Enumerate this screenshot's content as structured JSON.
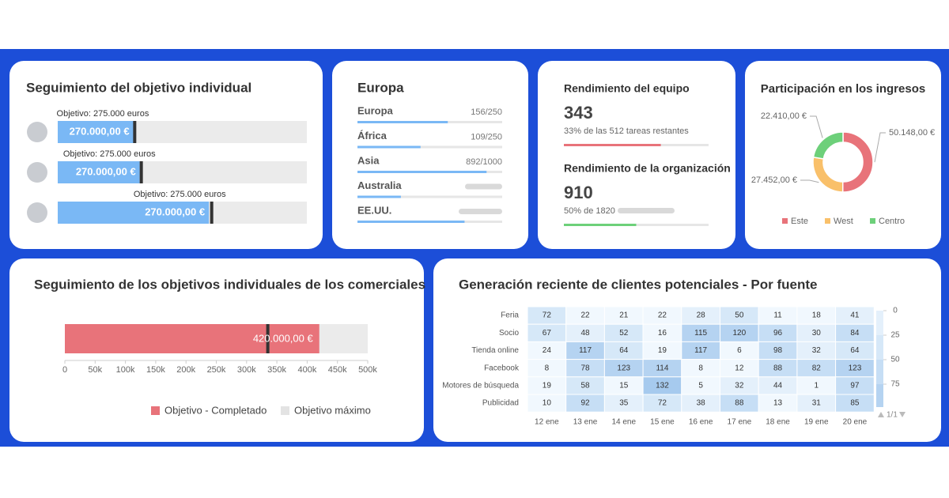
{
  "card1": {
    "title": "Seguimiento del objetivo individual",
    "rows": [
      {
        "target_label": "Objetivo: 275.000 euros",
        "target": 275000,
        "value": 270000,
        "value_label": "270.000,00 €",
        "max": 890000
      },
      {
        "target_label": "Objetivo: 275.000 euros",
        "target": 275000,
        "value": 270000,
        "value_label": "270.000,00 €",
        "max": 820000
      },
      {
        "target_label": "Objetivo: 275.000 euros",
        "target": 275000,
        "value": 270000,
        "value_label": "270.000,00 €",
        "max": 445000
      }
    ]
  },
  "card2": {
    "title": "Europa",
    "items": [
      {
        "name": "Europa",
        "value": 156,
        "max": 250,
        "label": "156/250"
      },
      {
        "name": "África",
        "value": 109,
        "max": 250,
        "label": "109/250"
      },
      {
        "name": "Asia",
        "value": 892,
        "max": 1000,
        "label": "892/1000"
      },
      {
        "name": "Australia",
        "progress": 30
      },
      {
        "name": "EE.UU.",
        "progress": 74
      }
    ]
  },
  "card3": {
    "blocks": [
      {
        "title": "Rendimiento del equipo",
        "value": 343,
        "max": 512,
        "subtitle": "33% de las 512 tareas restantes",
        "color": "#e8737a"
      },
      {
        "title": "Rendimiento de la organización",
        "value": 910,
        "max": 1820,
        "subtitle": "50% de 1820",
        "color": "#6dd07a"
      }
    ]
  },
  "card4": {
    "title": "Participación en los ingresos",
    "type": "donut",
    "categories": [
      "Este",
      "West",
      "Centro"
    ],
    "values": [
      50148,
      27452,
      22410
    ],
    "value_labels": [
      "50.148,00 €",
      "27.452,00 €",
      "22.410,00 €"
    ],
    "colors": [
      "#e8737a",
      "#f9c06a",
      "#6dd07a"
    ]
  },
  "card5": {
    "title": "Seguimiento de los objetivos individuales de los comerciales",
    "type": "bullet",
    "value": 420000,
    "value_label": "420.000,00 €",
    "target": 335000,
    "max": 500000,
    "xlim": [
      0,
      500000
    ],
    "xticks": [
      0,
      {
        "value": 50000,
        "label": "50k"
      },
      {
        "value": 100000,
        "label": "100k"
      },
      {
        "value": 150000,
        "label": "150k"
      },
      {
        "value": 200000,
        "label": "200k"
      },
      {
        "value": 250000,
        "label": "250k"
      },
      {
        "value": 300000,
        "label": "300k"
      },
      {
        "value": 350000,
        "label": "350k"
      },
      {
        "value": 400000,
        "label": "400k"
      },
      {
        "value": 450000,
        "label": "450k"
      },
      {
        "value": 500000,
        "label": "500k"
      }
    ],
    "legend": [
      "Objetivo - Completado",
      "Objetivo máximo"
    ],
    "colors": [
      "#e8737a",
      "#ebebeb"
    ]
  },
  "card6": {
    "title": "Generación reciente de clientes potenciales - Por fuente",
    "type": "heatmap",
    "rows": [
      "Feria",
      "Socio",
      "Tienda online",
      "Facebook",
      "Motores de búsqueda",
      "Publicidad"
    ],
    "columns": [
      "12 ene",
      "13 ene",
      "14 ene",
      "15 ene",
      "16 ene",
      "17 ene",
      "18 ene",
      "19 ene",
      "20 ene"
    ],
    "values": [
      [
        72,
        22,
        21,
        22,
        28,
        50,
        11,
        18,
        41
      ],
      [
        67,
        48,
        52,
        16,
        115,
        120,
        96,
        30,
        84
      ],
      [
        24,
        117,
        64,
        19,
        117,
        6,
        98,
        32,
        64
      ],
      [
        8,
        78,
        123,
        114,
        8,
        12,
        88,
        82,
        123
      ],
      [
        19,
        58,
        15,
        132,
        5,
        32,
        44,
        1,
        97
      ],
      [
        10,
        92,
        35,
        72,
        38,
        88,
        13,
        31,
        85
      ]
    ],
    "scale_ticks": [
      0,
      25,
      50,
      75
    ],
    "page": "1/1"
  }
}
